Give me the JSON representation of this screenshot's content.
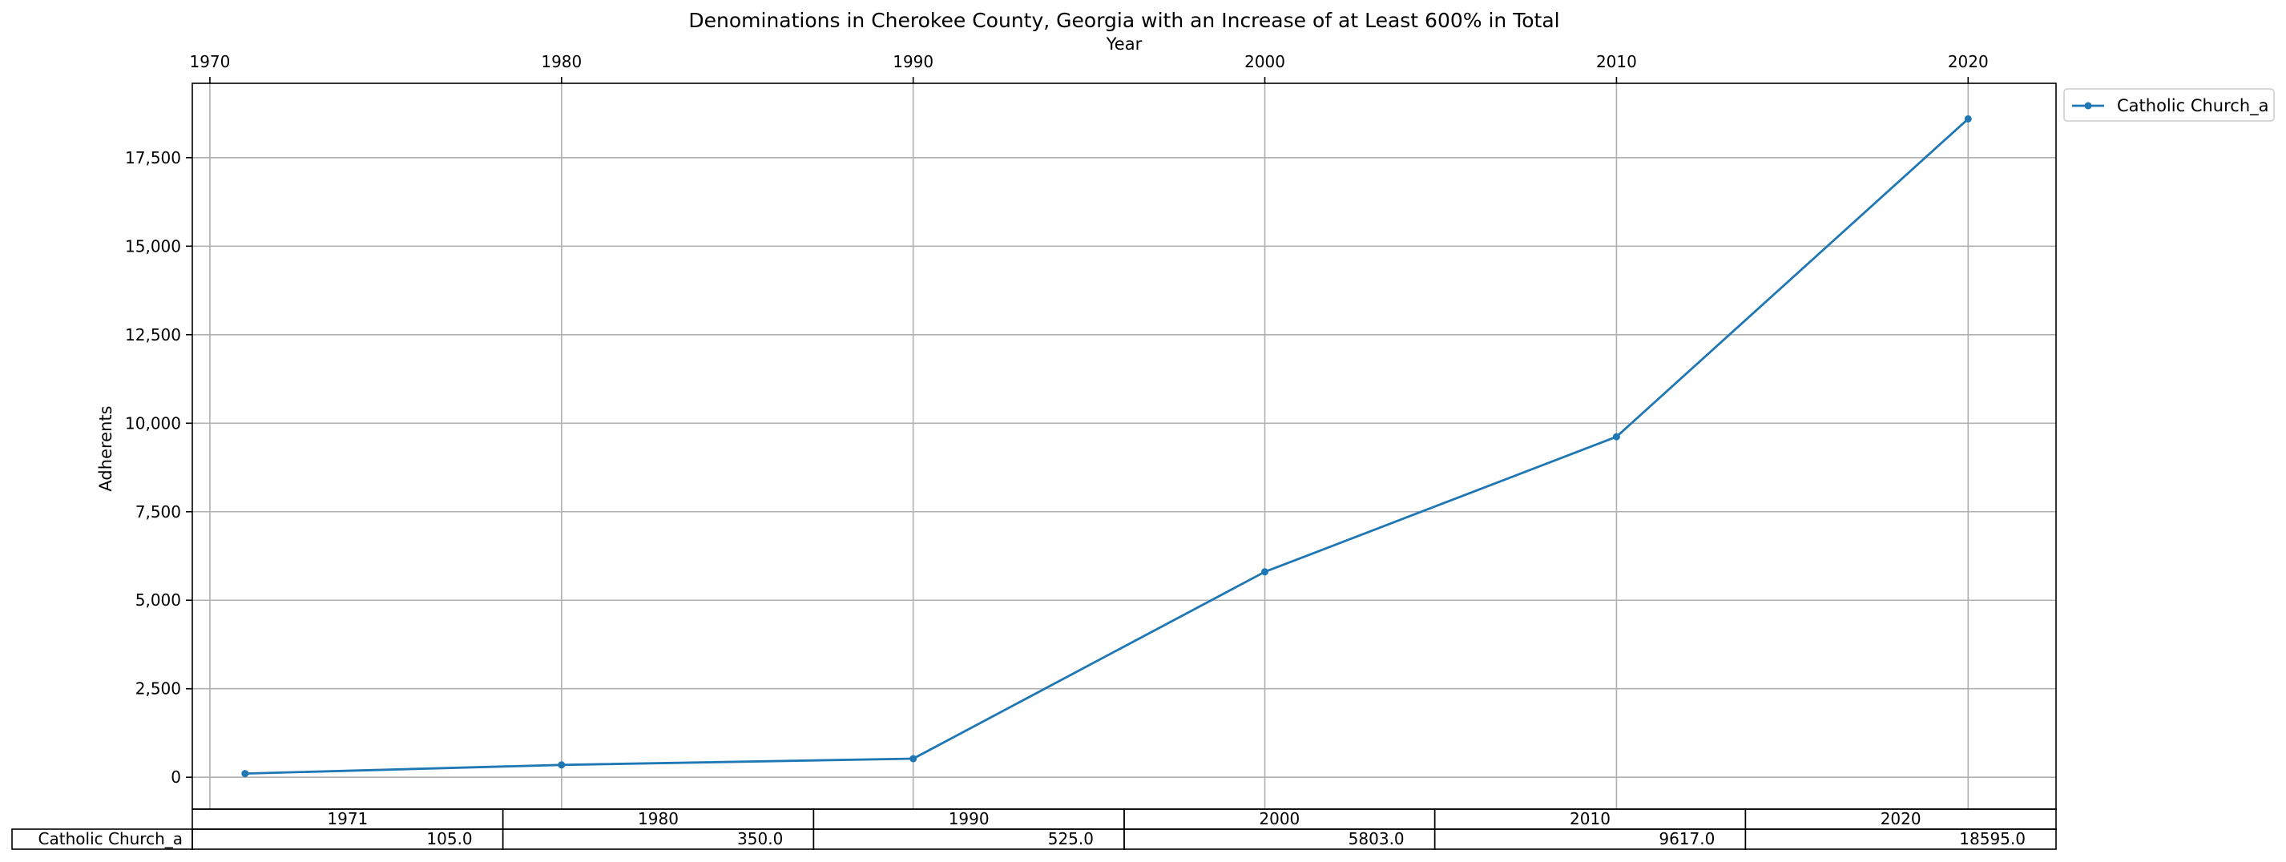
{
  "chart_data": {
    "type": "line",
    "title": "Denominations in Cherokee County, Georgia with an Increase of at Least 600% in Total",
    "xlabel": "Year",
    "ylabel": "Adherents",
    "x": [
      1971,
      1980,
      1990,
      2000,
      2010,
      2020
    ],
    "xlim": [
      1969.5,
      2022.5
    ],
    "ylim": [
      -900,
      19600
    ],
    "xticks": [
      1970,
      1980,
      1990,
      2000,
      2010,
      2020
    ],
    "xtick_labels": [
      "1970",
      "1980",
      "1990",
      "2000",
      "2010",
      "2020"
    ],
    "xaxis_position": "top",
    "yticks": [
      0,
      2500,
      5000,
      7500,
      10000,
      12500,
      15000,
      17500
    ],
    "ytick_labels": [
      "0",
      "2,500",
      "5,000",
      "7,500",
      "10,000",
      "12,500",
      "15,000",
      "17,500"
    ],
    "grid": true,
    "legend": "outside-top-right",
    "series": [
      {
        "name": "Catholic Church_a",
        "color": "#1f77b4",
        "marker": "circle",
        "values": [
          105,
          350,
          525,
          5803,
          9617,
          18595
        ]
      }
    ],
    "table": {
      "col_labels": [
        "1971",
        "1980",
        "1990",
        "2000",
        "2010",
        "2020"
      ],
      "rows": [
        {
          "label": "Catholic Church_a",
          "cells": [
            "105.0",
            "350.0",
            "525.0",
            "5803.0",
            "9617.0",
            "18595.0"
          ]
        }
      ]
    }
  }
}
